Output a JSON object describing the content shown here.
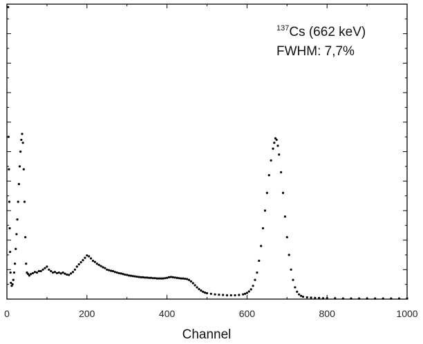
{
  "chart_data": {
    "type": "scatter",
    "title": "",
    "xlabel": "Channel",
    "ylabel": "",
    "xlim": [
      0,
      1000
    ],
    "ylim": [
      0,
      1
    ],
    "x_ticks": [
      "0",
      "200",
      "400",
      "600",
      "800",
      "1000"
    ],
    "y_tick_labels_shown": false,
    "grid": false,
    "marker_color": "#000000",
    "annotation": {
      "isotope_mass": "137",
      "isotope_rest": "Cs (662 keV)",
      "fwhm": "FWHM: 7,7%"
    },
    "series": [
      {
        "points": [
          [
            3,
            0.99
          ],
          [
            4,
            0.55
          ],
          [
            5,
            0.44
          ],
          [
            6,
            0.33
          ],
          [
            7,
            0.24
          ],
          [
            8,
            0.16
          ],
          [
            9,
            0.09
          ],
          [
            10,
            0.055
          ],
          [
            12,
            0.045
          ],
          [
            14,
            0.05
          ],
          [
            16,
            0.065
          ],
          [
            18,
            0.09
          ],
          [
            20,
            0.12
          ],
          [
            22,
            0.17
          ],
          [
            24,
            0.22
          ],
          [
            26,
            0.27
          ],
          [
            28,
            0.33
          ],
          [
            30,
            0.39
          ],
          [
            32,
            0.45
          ],
          [
            34,
            0.5
          ],
          [
            36,
            0.54
          ],
          [
            38,
            0.56
          ],
          [
            40,
            0.53
          ],
          [
            42,
            0.44
          ],
          [
            44,
            0.33
          ],
          [
            46,
            0.21
          ],
          [
            48,
            0.12
          ],
          [
            50,
            0.09
          ],
          [
            53,
            0.085
          ],
          [
            56,
            0.08
          ],
          [
            60,
            0.085
          ],
          [
            65,
            0.088
          ],
          [
            70,
            0.092
          ],
          [
            75,
            0.09
          ],
          [
            80,
            0.095
          ],
          [
            85,
            0.095
          ],
          [
            90,
            0.1
          ],
          [
            95,
            0.105
          ],
          [
            100,
            0.11
          ],
          [
            105,
            0.1
          ],
          [
            110,
            0.095
          ],
          [
            115,
            0.09
          ],
          [
            120,
            0.092
          ],
          [
            125,
            0.088
          ],
          [
            130,
            0.09
          ],
          [
            135,
            0.087
          ],
          [
            140,
            0.09
          ],
          [
            145,
            0.086
          ],
          [
            150,
            0.083
          ],
          [
            155,
            0.082
          ],
          [
            160,
            0.087
          ],
          [
            165,
            0.092
          ],
          [
            170,
            0.1
          ],
          [
            175,
            0.11
          ],
          [
            180,
            0.118
          ],
          [
            185,
            0.125
          ],
          [
            190,
            0.132
          ],
          [
            195,
            0.14
          ],
          [
            200,
            0.148
          ],
          [
            205,
            0.145
          ],
          [
            210,
            0.138
          ],
          [
            215,
            0.13
          ],
          [
            220,
            0.126
          ],
          [
            225,
            0.12
          ],
          [
            230,
            0.116
          ],
          [
            235,
            0.112
          ],
          [
            240,
            0.108
          ],
          [
            245,
            0.105
          ],
          [
            250,
            0.1
          ],
          [
            255,
            0.098
          ],
          [
            260,
            0.096
          ],
          [
            265,
            0.095
          ],
          [
            270,
            0.092
          ],
          [
            275,
            0.09
          ],
          [
            280,
            0.088
          ],
          [
            285,
            0.087
          ],
          [
            290,
            0.085
          ],
          [
            295,
            0.083
          ],
          [
            300,
            0.082
          ],
          [
            305,
            0.08
          ],
          [
            310,
            0.079
          ],
          [
            315,
            0.078
          ],
          [
            320,
            0.077
          ],
          [
            325,
            0.076
          ],
          [
            330,
            0.075
          ],
          [
            335,
            0.074
          ],
          [
            340,
            0.074
          ],
          [
            345,
            0.073
          ],
          [
            350,
            0.073
          ],
          [
            355,
            0.072
          ],
          [
            360,
            0.072
          ],
          [
            365,
            0.071
          ],
          [
            370,
            0.071
          ],
          [
            375,
            0.07
          ],
          [
            380,
            0.07
          ],
          [
            385,
            0.07
          ],
          [
            390,
            0.07
          ],
          [
            395,
            0.071
          ],
          [
            400,
            0.072
          ],
          [
            405,
            0.074
          ],
          [
            410,
            0.075
          ],
          [
            415,
            0.074
          ],
          [
            420,
            0.073
          ],
          [
            425,
            0.072
          ],
          [
            430,
            0.071
          ],
          [
            435,
            0.07
          ],
          [
            440,
            0.07
          ],
          [
            445,
            0.069
          ],
          [
            450,
            0.068
          ],
          [
            455,
            0.065
          ],
          [
            460,
            0.06
          ],
          [
            465,
            0.054
          ],
          [
            470,
            0.047
          ],
          [
            475,
            0.04
          ],
          [
            480,
            0.034
          ],
          [
            485,
            0.029
          ],
          [
            490,
            0.025
          ],
          [
            495,
            0.022
          ],
          [
            500,
            0.02
          ],
          [
            510,
            0.018
          ],
          [
            520,
            0.016
          ],
          [
            530,
            0.015
          ],
          [
            540,
            0.014
          ],
          [
            550,
            0.013
          ],
          [
            560,
            0.013
          ],
          [
            570,
            0.013
          ],
          [
            580,
            0.014
          ],
          [
            590,
            0.016
          ],
          [
            595,
            0.018
          ],
          [
            600,
            0.021
          ],
          [
            605,
            0.026
          ],
          [
            610,
            0.033
          ],
          [
            615,
            0.045
          ],
          [
            620,
            0.065
          ],
          [
            625,
            0.09
          ],
          [
            630,
            0.13
          ],
          [
            635,
            0.18
          ],
          [
            640,
            0.24
          ],
          [
            645,
            0.3
          ],
          [
            650,
            0.36
          ],
          [
            655,
            0.42
          ],
          [
            660,
            0.47
          ],
          [
            665,
            0.51
          ],
          [
            668,
            0.53
          ],
          [
            671,
            0.545
          ],
          [
            674,
            0.54
          ],
          [
            677,
            0.52
          ],
          [
            680,
            0.49
          ],
          [
            685,
            0.43
          ],
          [
            690,
            0.36
          ],
          [
            695,
            0.28
          ],
          [
            700,
            0.21
          ],
          [
            705,
            0.15
          ],
          [
            710,
            0.1
          ],
          [
            715,
            0.065
          ],
          [
            720,
            0.04
          ],
          [
            725,
            0.025
          ],
          [
            730,
            0.016
          ],
          [
            735,
            0.011
          ],
          [
            740,
            0.008
          ],
          [
            750,
            0.006
          ],
          [
            760,
            0.005
          ],
          [
            770,
            0.004
          ],
          [
            780,
            0.004
          ],
          [
            790,
            0.003
          ],
          [
            800,
            0.003
          ],
          [
            820,
            0.003
          ],
          [
            840,
            0.002
          ],
          [
            860,
            0.002
          ],
          [
            880,
            0.002
          ],
          [
            900,
            0.002
          ],
          [
            920,
            0.002
          ],
          [
            940,
            0.002
          ],
          [
            960,
            0.002
          ],
          [
            980,
            0.002
          ],
          [
            1000,
            0.002
          ]
        ]
      }
    ]
  }
}
